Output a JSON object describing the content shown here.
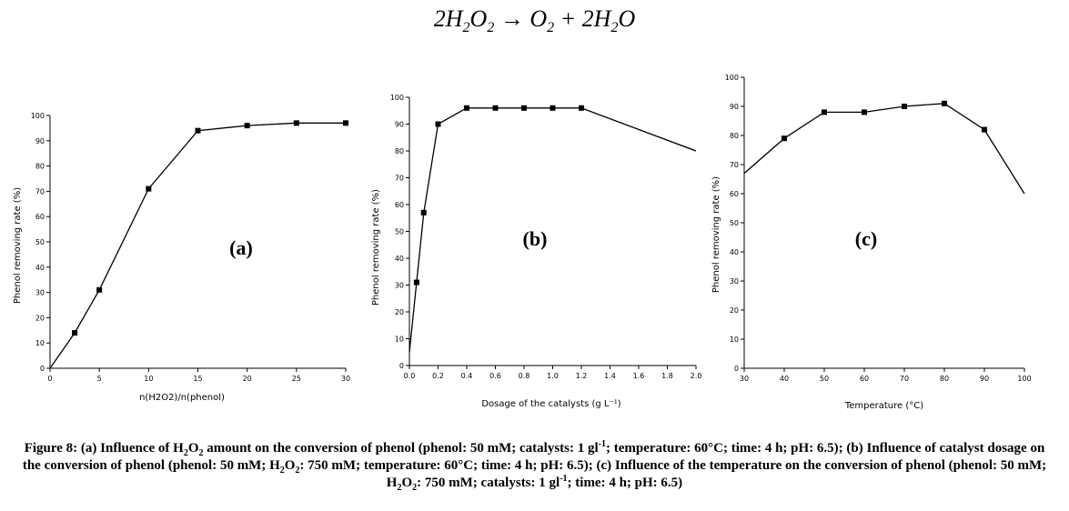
{
  "equation": {
    "lhs_coef": "2",
    "lhs_a": "H",
    "lhs_a_sub": "2",
    "lhs_b": "O",
    "lhs_b_sub": "2",
    "arrow": "→",
    "rhs1": "O",
    "rhs1_sub": "2",
    "plus": "+",
    "rhs2_coef": "2",
    "rhs2_a": "H",
    "rhs2_a_sub": "2",
    "rhs2_b": "O"
  },
  "chart_data": [
    {
      "type": "line",
      "panel_label": "(a)",
      "xlabel": "n(H2O2)/n(phenol)",
      "ylabel": "Phenol removing rate (%)",
      "xlim": [
        0,
        30
      ],
      "ylim": [
        0,
        100
      ],
      "xticks": [
        0,
        5,
        10,
        15,
        20,
        25,
        30
      ],
      "yticks": [
        0,
        10,
        20,
        30,
        40,
        50,
        60,
        70,
        80,
        90,
        100
      ],
      "x": [
        0,
        2.5,
        5,
        10,
        15,
        20,
        25,
        30
      ],
      "y": [
        0,
        14,
        31,
        71,
        94,
        96,
        97,
        97
      ],
      "marker_from_index": 1,
      "grid": false
    },
    {
      "type": "line",
      "panel_label": "(b)",
      "xlabel": "Dosage of the catalysts (g L⁻¹)",
      "ylabel": "Phenol removing rate (%)",
      "xlim": [
        0,
        2.0
      ],
      "ylim": [
        0,
        100
      ],
      "xticks": [
        "0.0",
        "0.2",
        "0.4",
        "0.6",
        "0.8",
        "1.0",
        "1.2",
        "1.4",
        "1.6",
        "1.8",
        "2.0"
      ],
      "yticks": [
        0,
        10,
        20,
        30,
        40,
        50,
        60,
        70,
        80,
        90,
        100
      ],
      "x": [
        0,
        0.05,
        0.1,
        0.2,
        0.4,
        0.6,
        0.8,
        1.0,
        1.2,
        2.0
      ],
      "y": [
        5,
        31,
        57,
        90,
        96,
        96,
        96,
        96,
        96,
        80
      ],
      "marker_from_index": 1,
      "marker_to_index": 8,
      "grid": false
    },
    {
      "type": "line",
      "panel_label": "(c)",
      "xlabel": "Temperature (°C)",
      "ylabel": "Phenol removing rate (%)",
      "xlim": [
        30,
        100
      ],
      "ylim": [
        0,
        100
      ],
      "xticks": [
        30,
        40,
        50,
        60,
        70,
        80,
        90,
        100
      ],
      "yticks": [
        0,
        10,
        20,
        30,
        40,
        50,
        60,
        70,
        80,
        90,
        100
      ],
      "x": [
        30,
        40,
        50,
        60,
        70,
        80,
        90,
        100
      ],
      "y": [
        67,
        79,
        88,
        88,
        90,
        91,
        82,
        60
      ],
      "marker_from_index": 1,
      "marker_to_index": 6,
      "grid": false
    }
  ],
  "caption": {
    "p1": "Figure 8: (a) Influence of H",
    "s1": "2",
    "p2": "O",
    "s2": "2",
    "p3": " amount on the conversion of phenol (phenol: 50 mM; catalysts: 1 gl",
    "sup1": "-1",
    "p4": "; temperature: 60°C; time: 4 h; pH: 6.5); (b) Influence of catalyst dosage on the conversion of phenol (phenol: 50 mM; H",
    "s3": "2",
    "p5": "O",
    "s4": "2",
    "p6": ": 750 mM; temperature: 60°C; time: 4 h; pH: 6.5); (c) Influence of the temperature on the conversion of phenol (phenol: 50 mM; H",
    "s5": "2",
    "p7": "O",
    "s6": "2",
    "p8": ": 750 mM; catalysts: 1 gl",
    "sup2": "-1",
    "p9": "; time: 4 h; pH: 6.5)"
  }
}
